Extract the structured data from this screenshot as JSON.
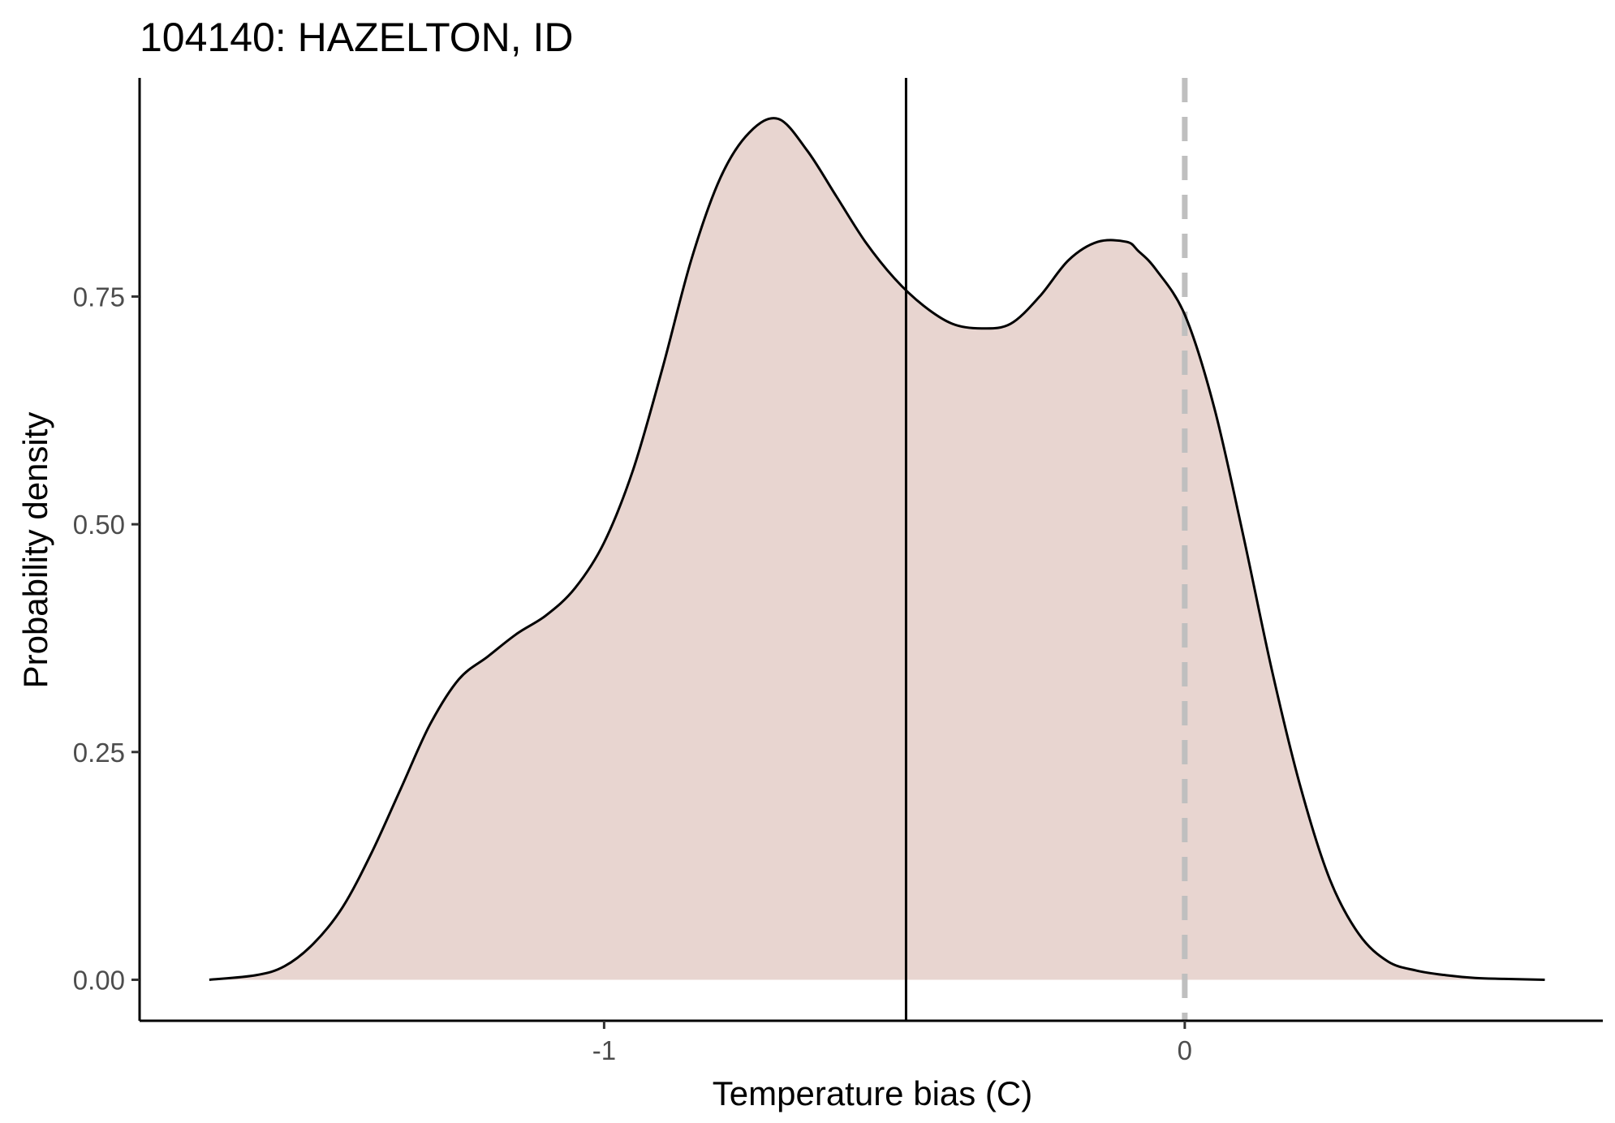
{
  "chart_data": {
    "type": "area",
    "title": "104140: HAZELTON, ID",
    "xlabel": "Temperature bias (C)",
    "ylabel": "Probability density",
    "xlim": [
      -1.8,
      0.72
    ],
    "ylim": [
      -0.045,
      0.99
    ],
    "x_ticks": [
      {
        "value": -1,
        "label": "-1"
      },
      {
        "value": 0,
        "label": "0"
      }
    ],
    "y_ticks": [
      {
        "value": 0,
        "label": "0.00"
      },
      {
        "value": 0.25,
        "label": "0.25"
      },
      {
        "value": 0.5,
        "label": "0.50"
      },
      {
        "value": 0.75,
        "label": "0.75"
      }
    ],
    "grid": false,
    "legend": "none",
    "fill_color": "#e8d5d0",
    "line_color": "#000000",
    "reference_lines": [
      {
        "axis": "x",
        "value": -0.48,
        "style": "solid",
        "color": "#000000"
      },
      {
        "axis": "x",
        "value": 0,
        "style": "dashed",
        "color": "#bfbfbf"
      }
    ],
    "series": [
      {
        "x": [
          -1.68,
          -1.6,
          -1.55,
          -1.5,
          -1.45,
          -1.4,
          -1.35,
          -1.3,
          -1.25,
          -1.2,
          -1.15,
          -1.1,
          -1.05,
          -1.0,
          -0.95,
          -0.9,
          -0.85,
          -0.8,
          -0.75,
          -0.7,
          -0.65,
          -0.6,
          -0.55,
          -0.5,
          -0.45,
          -0.4,
          -0.35,
          -0.3,
          -0.25,
          -0.2,
          -0.15,
          -0.1,
          -0.08,
          -0.05,
          0.0,
          0.05,
          0.1,
          0.15,
          0.2,
          0.25,
          0.3,
          0.35,
          0.4,
          0.45,
          0.5,
          0.55,
          0.62
        ],
        "y": [
          0.0,
          0.005,
          0.015,
          0.04,
          0.08,
          0.14,
          0.21,
          0.28,
          0.33,
          0.355,
          0.38,
          0.4,
          0.43,
          0.48,
          0.56,
          0.67,
          0.79,
          0.88,
          0.93,
          0.945,
          0.91,
          0.86,
          0.81,
          0.77,
          0.74,
          0.72,
          0.715,
          0.72,
          0.75,
          0.79,
          0.81,
          0.81,
          0.8,
          0.78,
          0.73,
          0.63,
          0.49,
          0.34,
          0.21,
          0.11,
          0.05,
          0.02,
          0.01,
          0.005,
          0.002,
          0.001,
          0.0
        ]
      }
    ]
  }
}
